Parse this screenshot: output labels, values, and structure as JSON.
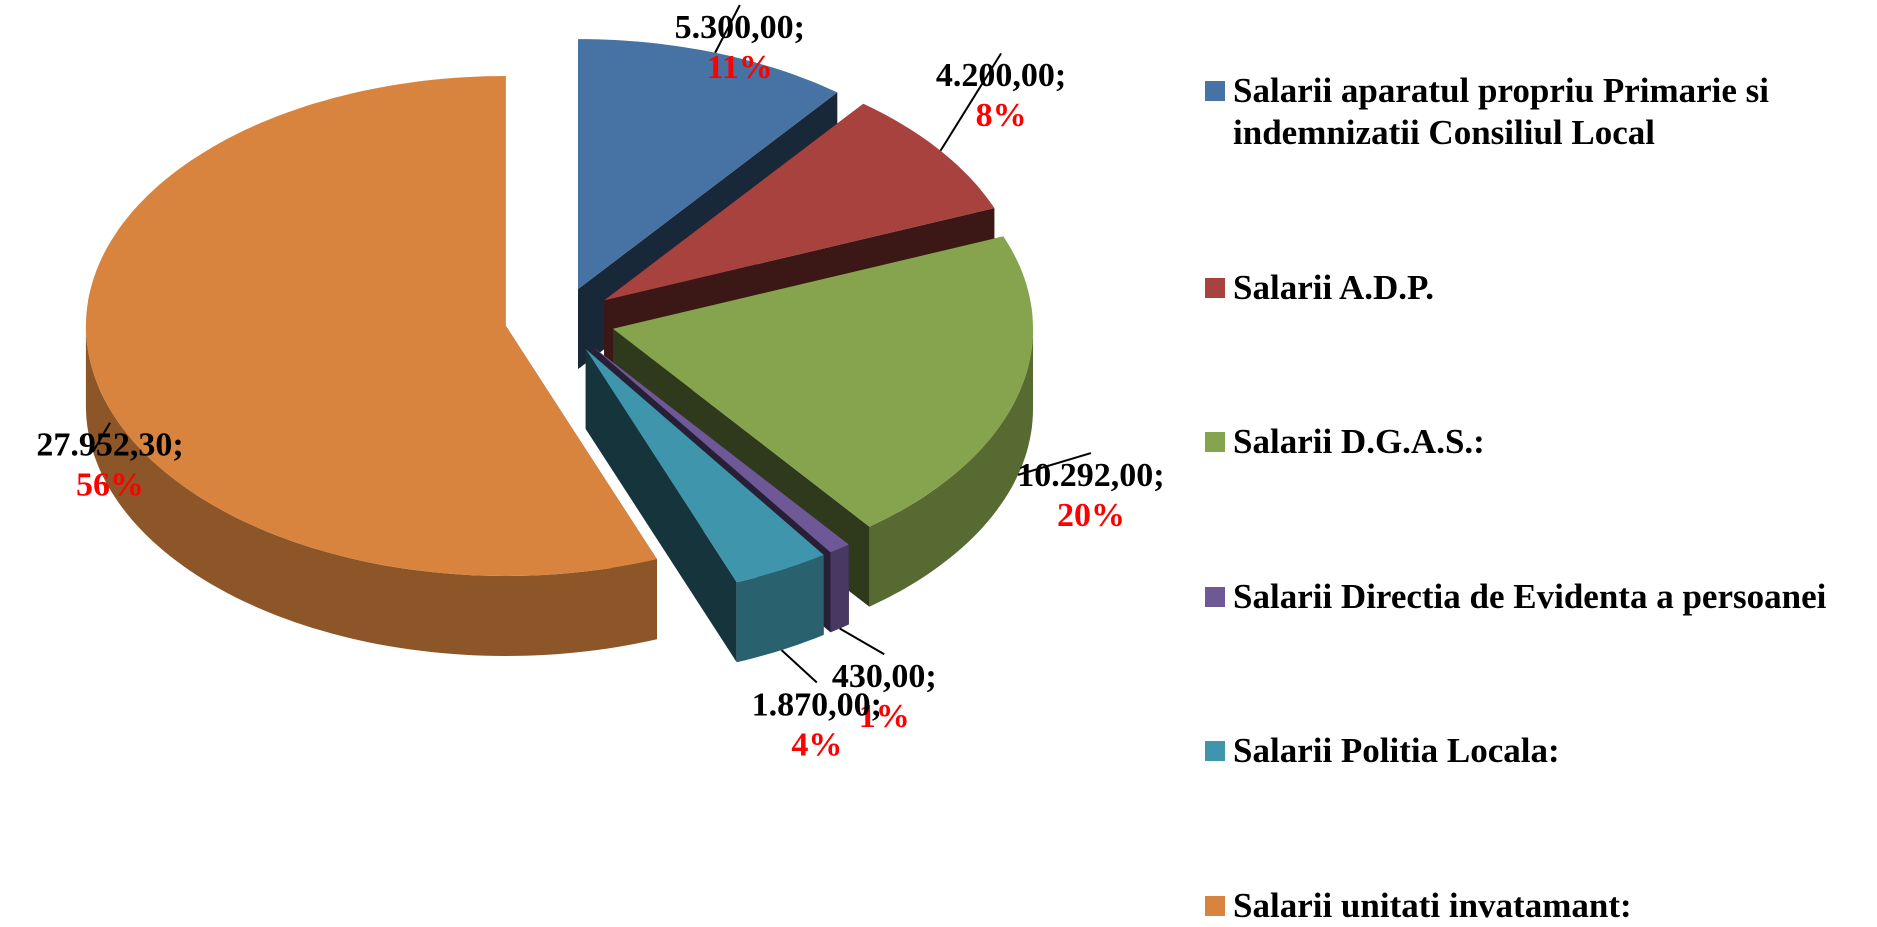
{
  "chart_data": {
    "type": "pie",
    "categories": [
      "Salarii aparatul propriu Primarie si indemnizatii Consiliul Local",
      "Salarii A.D.P.",
      "Salarii D.G.A.S.:",
      "Salarii Directia de Evidenta a persoanei",
      "Salarii Politia Locala:",
      "Salarii unitati invatamant:"
    ],
    "values": [
      5300,
      4200,
      10292,
      430,
      1870,
      27952.3
    ],
    "value_labels": [
      "5.300,00;",
      "4.200,00;",
      "10.292,00;",
      "430,00;",
      "1.870,00;",
      "27.952,30;"
    ],
    "percents": [
      11,
      8,
      20,
      1,
      4,
      56
    ],
    "percent_labels": [
      "11%",
      "8%",
      "20%",
      "1%",
      "4%",
      "56%"
    ],
    "colors": [
      "#4672a4",
      "#a8423e",
      "#86a34d",
      "#6e5896",
      "#3f95ab",
      "#d9843e"
    ],
    "legend": "right"
  }
}
